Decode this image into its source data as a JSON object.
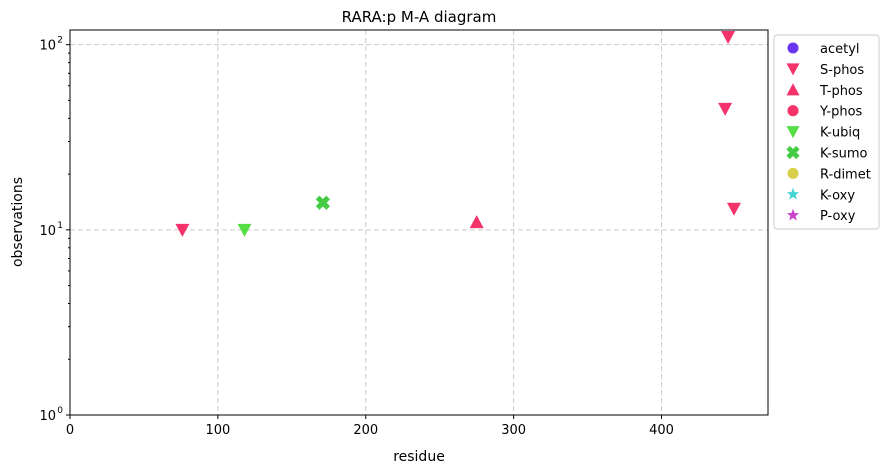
{
  "chart_data": {
    "type": "scatter",
    "title": "RARA:p M-A diagram",
    "xlabel": "residue",
    "ylabel": "observations",
    "xlim": [
      0,
      472
    ],
    "ylim": [
      1,
      120
    ],
    "yscale": "log",
    "grid": true,
    "legend_position": "outside-right",
    "x_ticks": [
      0,
      100,
      200,
      300,
      400
    ],
    "x_tick_labels": [
      "0",
      "100",
      "200",
      "300",
      "400"
    ],
    "y_ticks": [
      1,
      10,
      100
    ],
    "y_tick_labels": [
      "10",
      "10",
      "10"
    ],
    "y_tick_exponents": [
      "0",
      "1",
      "2"
    ],
    "series": [
      {
        "name": "acetyl",
        "marker": "circle",
        "color": "#6a35f0",
        "points": []
      },
      {
        "name": "S-phos",
        "marker": "triangle-down",
        "color": "#f5336b",
        "points": [
          [
            76,
            10
          ],
          [
            445,
            110
          ],
          [
            443,
            45
          ],
          [
            449,
            13
          ]
        ]
      },
      {
        "name": "T-phos",
        "marker": "triangle-up",
        "color": "#f5336b",
        "points": [
          [
            275,
            11
          ]
        ]
      },
      {
        "name": "Y-phos",
        "marker": "circle",
        "color": "#f5336b",
        "points": []
      },
      {
        "name": "K-ubiq",
        "marker": "triangle-down",
        "color": "#55dd44",
        "points": [
          [
            118,
            10
          ]
        ]
      },
      {
        "name": "K-sumo",
        "marker": "x",
        "color": "#44cc44",
        "points": [
          [
            171,
            14
          ]
        ]
      },
      {
        "name": "R-dimet",
        "marker": "circle",
        "color": "#d8d04a",
        "points": []
      },
      {
        "name": "K-oxy",
        "marker": "star",
        "color": "#44d4d4",
        "points": []
      },
      {
        "name": "P-oxy",
        "marker": "star",
        "color": "#cc44cc",
        "points": []
      }
    ]
  }
}
